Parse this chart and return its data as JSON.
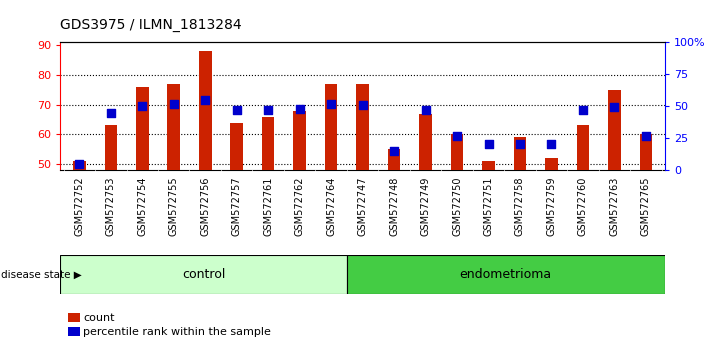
{
  "title": "GDS3975 / ILMN_1813284",
  "samples": [
    "GSM572752",
    "GSM572753",
    "GSM572754",
    "GSM572755",
    "GSM572756",
    "GSM572757",
    "GSM572761",
    "GSM572762",
    "GSM572764",
    "GSM572747",
    "GSM572748",
    "GSM572749",
    "GSM572750",
    "GSM572751",
    "GSM572758",
    "GSM572759",
    "GSM572760",
    "GSM572763",
    "GSM572765"
  ],
  "counts": [
    51,
    63,
    76,
    77,
    88,
    64,
    66,
    68,
    77,
    77,
    55,
    67,
    60,
    51,
    59,
    52,
    63,
    75,
    60
  ],
  "percentiles": [
    5,
    45,
    50,
    52,
    55,
    47,
    47,
    48,
    52,
    51,
    15,
    47,
    27,
    20,
    20,
    20,
    47,
    49,
    27
  ],
  "control_count": 9,
  "endometrioma_count": 10,
  "ylim_left": [
    48,
    91
  ],
  "ylim_right": [
    0,
    100
  ],
  "yticks_left": [
    50,
    60,
    70,
    80,
    90
  ],
  "yticks_right": [
    0,
    25,
    50,
    75,
    100
  ],
  "ytick_labels_right": [
    "0",
    "25",
    "50",
    "75",
    "100%"
  ],
  "bar_color": "#cc2200",
  "dot_color": "#0000cc",
  "control_color": "#ccffcc",
  "endometrioma_color": "#44cc44",
  "tick_bg_color": "#cccccc",
  "plot_bg": "#ffffff",
  "legend_count_label": "count",
  "legend_pct_label": "percentile rank within the sample",
  "disease_state_label": "disease state",
  "control_label": "control",
  "endometrioma_label": "endometrioma",
  "bar_width": 0.4,
  "dot_size": 30
}
